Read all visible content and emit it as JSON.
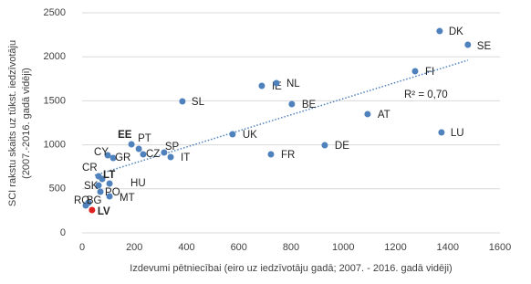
{
  "chart_data": {
    "type": "scatter",
    "x_label": "Izdevumi pētniecībai (eiro uz iedzīvotāju gadā; 2007. - 2016. gadā vidēji)",
    "y_label": [
      "SCI rakstu skaits uz tūkst. iedzīvotāju",
      "(2007.-2016. gadā vidēji)"
    ],
    "labels": [
      "DK",
      "SE",
      "FI",
      "IE",
      "NL",
      "SL",
      "BE",
      "AT",
      "LU",
      "UK",
      "DE",
      "FR",
      "EE",
      "PT",
      "SP",
      "CZ",
      "IT",
      "CY",
      "GR",
      "CR",
      "LT",
      "HU",
      "SK",
      "PO",
      "MT",
      "RO",
      "BG",
      "LV"
    ],
    "x": [
      1369,
      1477,
      1275,
      688,
      744,
      384,
      803,
      1093,
      1376,
      576,
      929,
      723,
      189,
      217,
      314,
      234,
      339,
      98,
      119,
      63,
      77,
      105,
      63,
      70,
      105,
      14,
      24,
      38
    ],
    "values": [
      2292,
      2137,
      1836,
      1670,
      1701,
      1494,
      1463,
      1349,
      1141,
      1120,
      996,
      892,
      1006,
      954,
      913,
      892,
      861,
      882,
      851,
      643,
      612,
      560,
      539,
      467,
      415,
      311,
      342,
      259
    ],
    "colors": [
      "#4f81bd",
      "#4f81bd",
      "#4f81bd",
      "#4f81bd",
      "#4f81bd",
      "#4f81bd",
      "#4f81bd",
      "#4f81bd",
      "#4f81bd",
      "#4f81bd",
      "#4f81bd",
      "#4f81bd",
      "#4f81bd",
      "#4f81bd",
      "#4f81bd",
      "#4f81bd",
      "#4f81bd",
      "#4f81bd",
      "#4f81bd",
      "#4f81bd",
      "#4f81bd",
      "#4f81bd",
      "#4f81bd",
      "#4f81bd",
      "#4f81bd",
      "#4f81bd",
      "#4f81bd",
      "#e02020"
    ],
    "label_bold": [
      false,
      false,
      false,
      false,
      false,
      false,
      false,
      false,
      false,
      false,
      false,
      false,
      true,
      false,
      false,
      false,
      false,
      false,
      false,
      false,
      true,
      false,
      false,
      false,
      false,
      false,
      false,
      true
    ],
    "trendline": {
      "x": [
        49,
        1477
      ],
      "y": [
        654,
        1961
      ],
      "color": "#4f81bd",
      "annotation": "R² = 0,70"
    },
    "xlim": [
      0,
      1600
    ],
    "xticks": [
      0,
      200,
      400,
      600,
      800,
      1000,
      1200,
      1400,
      1600
    ],
    "ylim": [
      0,
      2500
    ],
    "yticks": [
      0,
      500,
      1000,
      1500,
      2000,
      2500
    ],
    "grid": true
  }
}
